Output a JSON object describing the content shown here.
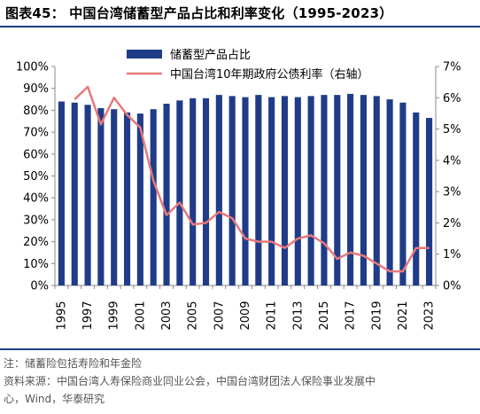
{
  "title": "图表45：  中国台湾储蓄型产品占比和利率变化（1995-2023）",
  "footnotes": {
    "note": "注：储蓄险包括寿险和年金险",
    "source_line1": "资料来源：中国台湾人寿保险商业同业公会，中国台湾财团法人保险事业发展中",
    "source_line2": "心，Wind，华泰研究"
  },
  "colors": {
    "bar": "#1f3c88",
    "line": "#e8787a",
    "rule": "#1f3c88"
  },
  "chart_data": {
    "type": "bar",
    "x": [
      1995,
      1996,
      1997,
      1998,
      1999,
      2000,
      2001,
      2002,
      2003,
      2004,
      2005,
      2006,
      2007,
      2008,
      2009,
      2010,
      2011,
      2012,
      2013,
      2014,
      2015,
      2016,
      2017,
      2018,
      2019,
      2020,
      2021,
      2022,
      2023
    ],
    "x_tick_labels": [
      "1995",
      "1997",
      "1999",
      "2001",
      "2003",
      "2005",
      "2007",
      "2009",
      "2011",
      "2013",
      "2015",
      "2017",
      "2019",
      "2021",
      "2023"
    ],
    "y_left_ticks": [
      "0%",
      "10%",
      "20%",
      "30%",
      "40%",
      "50%",
      "60%",
      "70%",
      "80%",
      "90%",
      "100%"
    ],
    "y_right_ticks": [
      "0%",
      "1%",
      "2%",
      "3%",
      "4%",
      "5%",
      "6%",
      "7%"
    ],
    "ylim_left": [
      0,
      100
    ],
    "ylim_right": [
      0,
      7
    ],
    "series": [
      {
        "name": "储蓄型产品占比",
        "type": "bar",
        "axis": "left",
        "values": [
          84,
          83.5,
          82.5,
          81,
          80.5,
          79,
          78.5,
          80.5,
          83,
          84.5,
          85.5,
          85.5,
          87,
          86.5,
          86,
          87,
          86,
          86.5,
          86,
          86.5,
          87,
          87,
          87.5,
          87,
          86.5,
          85,
          83.5,
          79,
          76.5
        ]
      },
      {
        "name": "中国台湾10年期政府公债利率（右轴）",
        "type": "line",
        "axis": "right",
        "values": [
          null,
          5.95,
          6.35,
          5.15,
          6.0,
          5.45,
          5.05,
          3.35,
          2.25,
          2.65,
          1.95,
          2.0,
          2.35,
          2.15,
          1.5,
          1.4,
          1.4,
          1.2,
          1.5,
          1.6,
          1.35,
          0.85,
          1.05,
          0.95,
          0.7,
          0.45,
          0.45,
          1.2,
          1.2
        ]
      }
    ],
    "legend_position": "top-center",
    "grid": false
  }
}
